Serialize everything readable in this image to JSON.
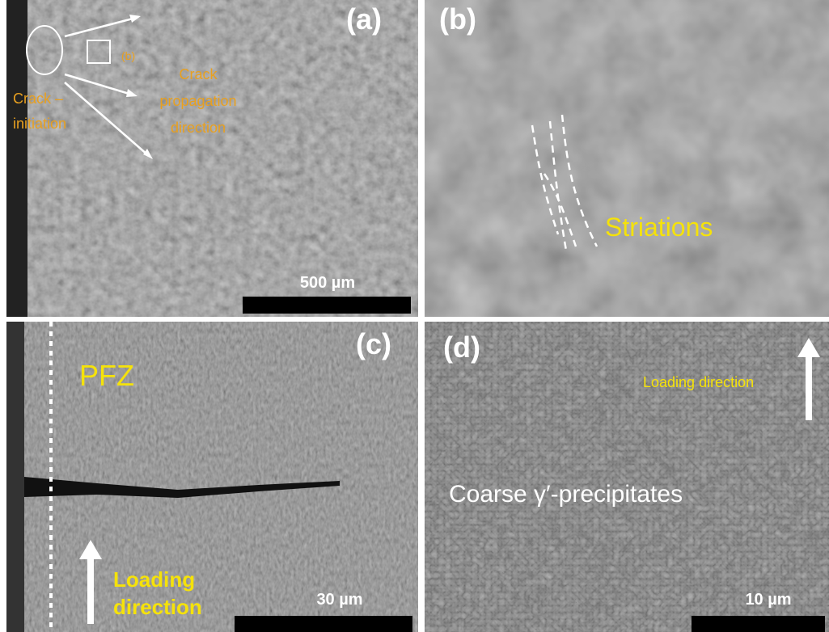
{
  "panels": [
    {
      "label": "(a)",
      "annotations": [
        {
          "lines": [
            "Crack –",
            "initiation"
          ]
        },
        {
          "lines": [
            "Crack",
            "propagation",
            "direction"
          ]
        },
        {
          "lines": [
            "(b)"
          ]
        }
      ],
      "scale_bar": "500 µm"
    },
    {
      "label": "(b)",
      "annotations": [
        {
          "lines": [
            "Striations"
          ]
        }
      ]
    },
    {
      "label": "(c)",
      "annotations": [
        {
          "lines": [
            "PFZ"
          ]
        },
        {
          "lines": [
            "Loading",
            "direction"
          ]
        }
      ],
      "scale_bar": "30 µm"
    },
    {
      "label": "(d)",
      "annotations": [
        {
          "lines": [
            "Loading direction"
          ]
        },
        {
          "lines": [
            "Coarse γ′-precipitates"
          ]
        }
      ],
      "scale_bar": "10 µm"
    }
  ]
}
